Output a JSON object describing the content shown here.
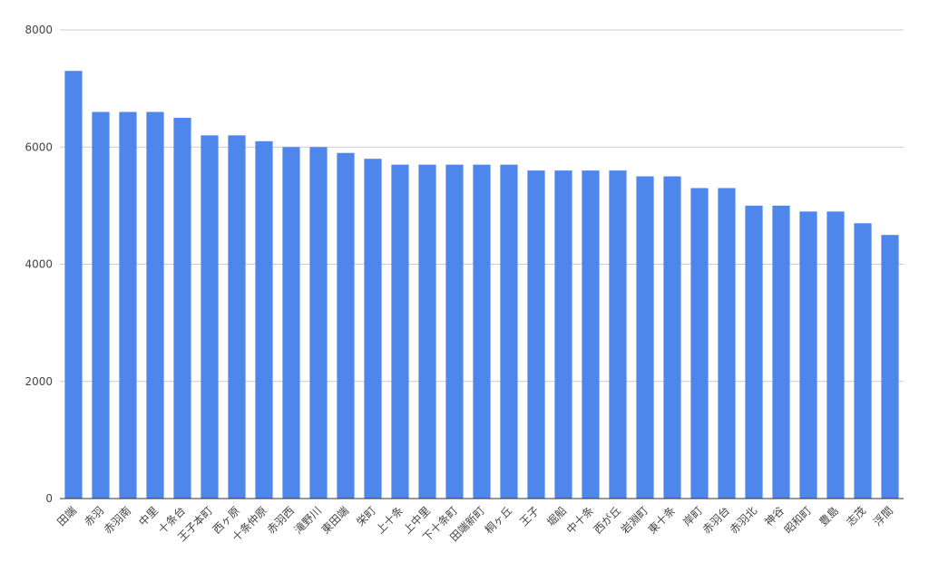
{
  "chart_data": {
    "type": "bar",
    "title": "",
    "xlabel": "",
    "ylabel": "",
    "ylim": [
      0,
      8000
    ],
    "yticks": [
      "0",
      "2000",
      "4000",
      "6000",
      "8000"
    ],
    "grid": true,
    "bar_color": "#4f86ec",
    "categories": [
      "田端",
      "赤羽",
      "赤羽南",
      "中里",
      "十条台",
      "王子本町",
      "西ヶ原",
      "十条仲原",
      "赤羽西",
      "滝野川",
      "東田端",
      "栄町",
      "上十条",
      "上中里",
      "下十条町",
      "田端新町",
      "桐ヶ丘",
      "王子",
      "堀船",
      "中十条",
      "西が丘",
      "岩淵町",
      "東十条",
      "岸町",
      "赤羽台",
      "赤羽北",
      "神谷",
      "昭和町",
      "豊島",
      "志茂",
      "浮間"
    ],
    "values": [
      7300,
      6600,
      6600,
      6600,
      6500,
      6200,
      6200,
      6100,
      6000,
      6000,
      5900,
      5800,
      5700,
      5700,
      5700,
      5700,
      5700,
      5600,
      5600,
      5600,
      5600,
      5500,
      5500,
      5300,
      5300,
      5000,
      5000,
      4900,
      4900,
      4700,
      4500
    ]
  }
}
